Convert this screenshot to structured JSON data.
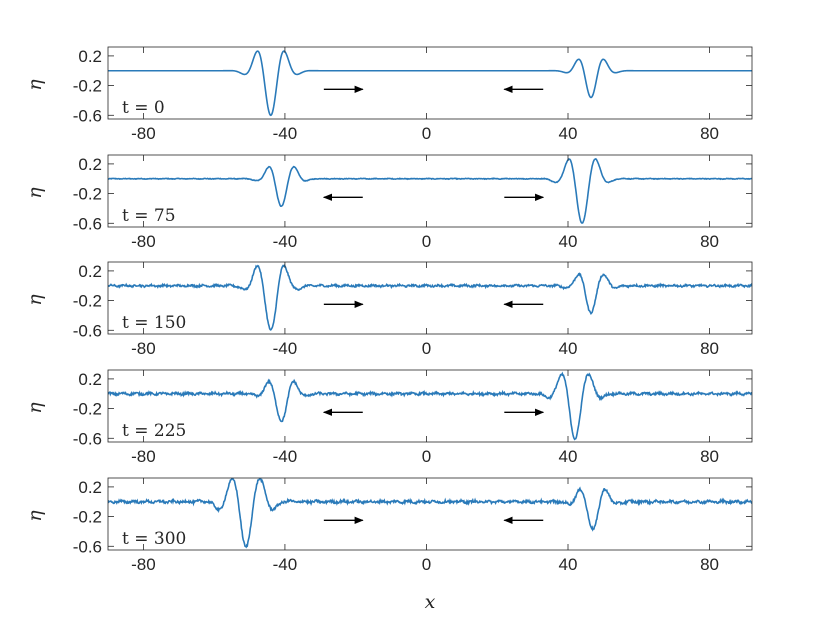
{
  "chart_data": {
    "type": "line",
    "line_color": "#2a7ab9",
    "axis_color": "#262626",
    "arrow_color": "#000000",
    "xlabel": "x",
    "ylabel": "η",
    "xlim": [
      -90,
      92
    ],
    "ylim": [
      -0.65,
      0.32
    ],
    "xticks": [
      -80,
      -40,
      0,
      40,
      80
    ],
    "xtick_labels": [
      "-80",
      "-40",
      "0",
      "40",
      "80"
    ],
    "yticks": [
      0.2,
      -0.2,
      -0.6
    ],
    "ytick_labels": [
      "0.2",
      "-0.2",
      "-0.6"
    ],
    "grid": false,
    "panels": [
      {
        "label": "t = 0",
        "t": 0,
        "noise": 0,
        "pulses": [
          {
            "center": -44,
            "amplitude": 1.0,
            "width": 3.5,
            "k": 0.75
          },
          {
            "center": 46.5,
            "amplitude": 0.6,
            "width": 3.2,
            "k": 0.8
          }
        ],
        "arrows": [
          {
            "from": -29,
            "to": -18,
            "direction": "right"
          },
          {
            "from": 33,
            "to": 22,
            "direction": "left"
          }
        ]
      },
      {
        "label": "t = 75",
        "t": 75,
        "noise": 0.004,
        "pulses": [
          {
            "center": -41,
            "amplitude": 0.62,
            "width": 3.2,
            "k": 0.8
          },
          {
            "center": 44,
            "amplitude": 1.0,
            "width": 3.5,
            "k": 0.75
          }
        ],
        "arrows": [
          {
            "from": -18,
            "to": -29,
            "direction": "left"
          },
          {
            "from": 22,
            "to": 33,
            "direction": "right"
          }
        ]
      },
      {
        "label": "t = 150",
        "t": 150,
        "noise": 0.012,
        "pulses": [
          {
            "center": -44,
            "amplitude": 1.0,
            "width": 3.5,
            "k": 0.75
          },
          {
            "center": 46.5,
            "amplitude": 0.6,
            "width": 3.2,
            "k": 0.8
          }
        ],
        "arrows": [
          {
            "from": -29,
            "to": -18,
            "direction": "right"
          },
          {
            "from": 33,
            "to": 22,
            "direction": "left"
          }
        ]
      },
      {
        "label": "t = 225",
        "t": 225,
        "noise": 0.014,
        "pulses": [
          {
            "center": -41,
            "amplitude": 0.62,
            "width": 3.2,
            "k": 0.8
          },
          {
            "center": 42,
            "amplitude": 1.0,
            "width": 3.5,
            "k": 0.75
          }
        ],
        "arrows": [
          {
            "from": -18,
            "to": -29,
            "direction": "left"
          },
          {
            "from": 22,
            "to": 33,
            "direction": "right"
          }
        ]
      },
      {
        "label": "t = 300",
        "t": 300,
        "noise": 0.016,
        "pulses": [
          {
            "center": -51,
            "amplitude": 1.0,
            "width": 4.2,
            "k": 0.75
          },
          {
            "center": 47,
            "amplitude": 0.62,
            "width": 3.2,
            "k": 0.8
          }
        ],
        "arrows": [
          {
            "from": -29,
            "to": -18,
            "direction": "right"
          },
          {
            "from": 33,
            "to": 22,
            "direction": "left"
          }
        ]
      }
    ]
  }
}
